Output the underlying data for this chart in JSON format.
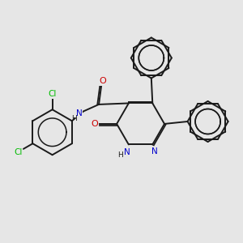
{
  "background_color": "#e6e6e6",
  "bond_color": "#1a1a1a",
  "bond_width": 1.4,
  "dbo": 0.06,
  "atom_colors": {
    "N": "#0000cc",
    "O": "#cc0000",
    "Cl": "#00bb00",
    "H": "#1a1a1a"
  },
  "font_size": 7.5
}
